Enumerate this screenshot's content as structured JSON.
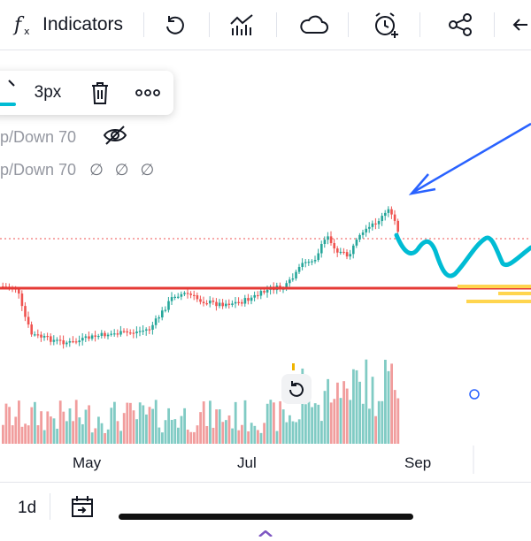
{
  "toolbar": {
    "indicators_label": "Indicators",
    "icons": [
      "fx-icon",
      "undo-icon",
      "chart-type-icon",
      "cloud-icon",
      "alarm-add-icon",
      "share-icon",
      "back-arrow-icon"
    ]
  },
  "drawing_popup": {
    "line_width_label": "3px",
    "icons": [
      "brush-icon",
      "trash-icon",
      "more-icon"
    ],
    "accent_color": "#00bcd4"
  },
  "legend": {
    "row1": "p/Down 70",
    "row2": "p/Down 70",
    "row2_values": "∅ ∅ ∅"
  },
  "time_axis": {
    "labels": [
      "May",
      "Jul",
      "Sep"
    ]
  },
  "bottom_bar": {
    "interval_label": "1d",
    "icons": [
      "date-range-icon"
    ]
  },
  "colors": {
    "up": "#26a69a",
    "down": "#ef5350",
    "up_volume": "#80cbc4",
    "down_volume": "#f19d9d",
    "support_line": "#e53935",
    "arrow": "#2962ff",
    "projection": "#00bcd4",
    "zones": "#ffd54f"
  }
}
